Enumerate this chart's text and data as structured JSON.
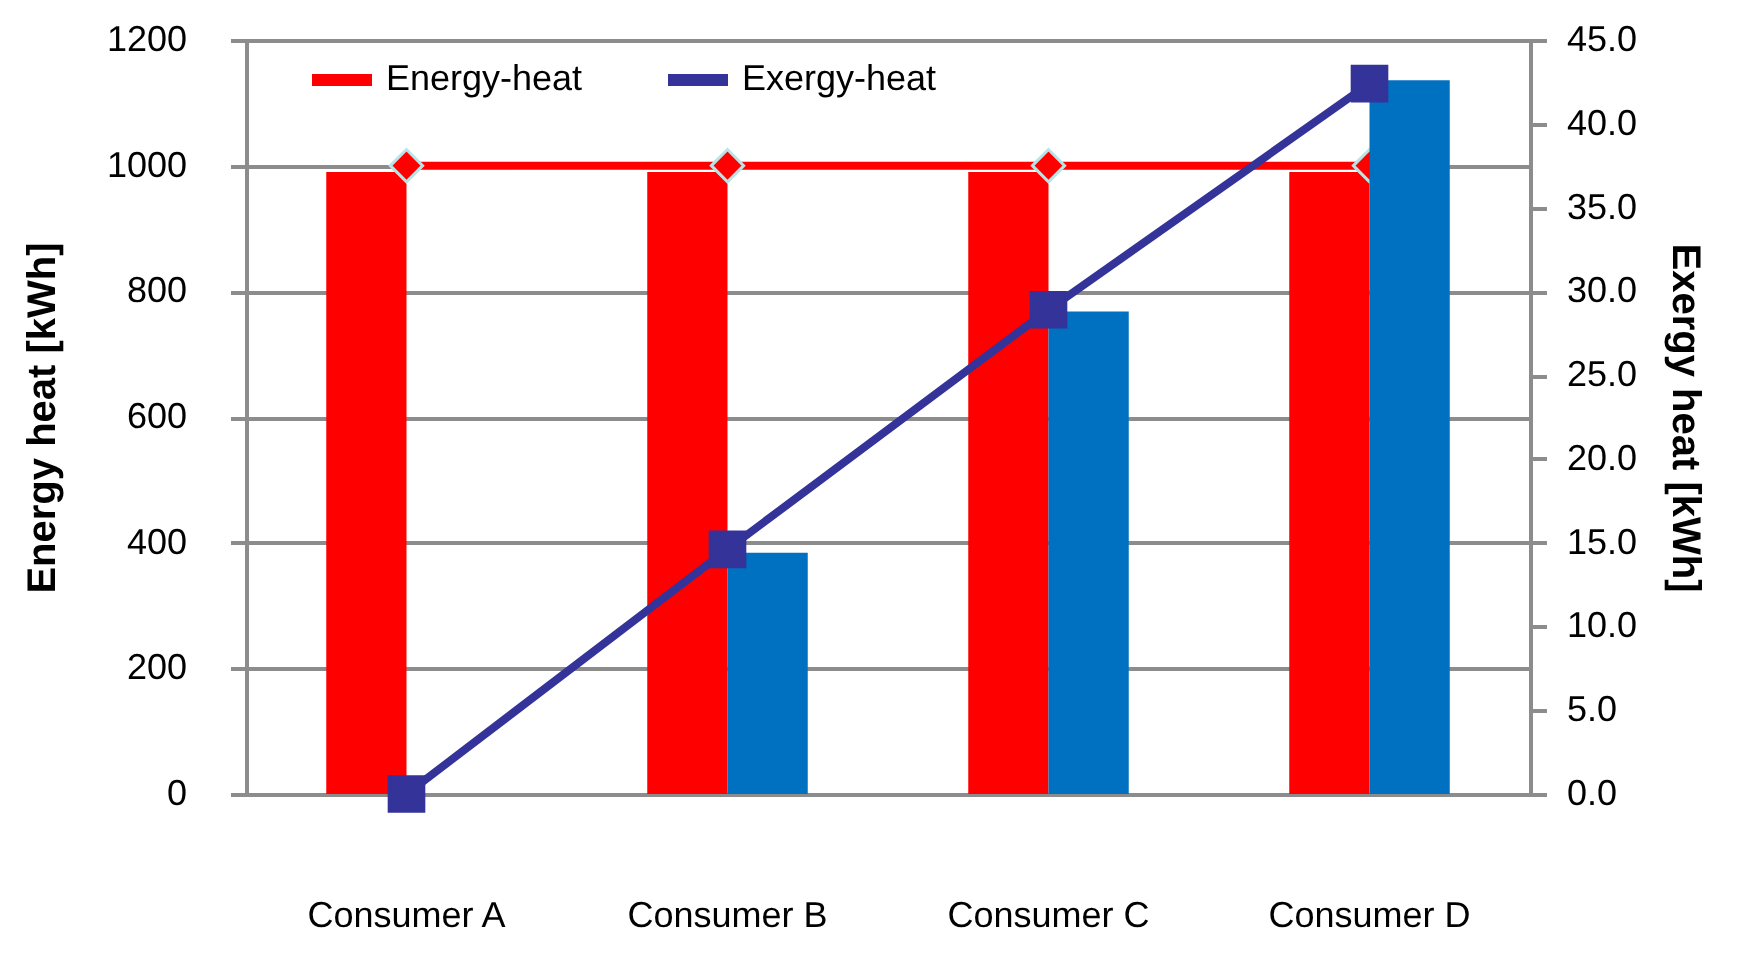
{
  "chart_data": {
    "type": "bar",
    "categories": [
      "Consumer A",
      "Consumer B",
      "Consumer C",
      "Consumer D"
    ],
    "ylabel": "Energy heat [kWh]",
    "y2label": "Exergy heat [kWh]",
    "ylim": [
      0,
      1200
    ],
    "yticks": [
      0,
      200,
      400,
      600,
      800,
      1000,
      1200
    ],
    "y2lim": [
      0,
      45
    ],
    "y2ticks": [
      {
        "value": 0,
        "label": "0.0"
      },
      {
        "value": 5,
        "label": "5.0"
      },
      {
        "value": 10,
        "label": "10.0"
      },
      {
        "value": 15,
        "label": "15.0"
      },
      {
        "value": 20,
        "label": "20.0"
      },
      {
        "value": 25,
        "label": "25.0"
      },
      {
        "value": 30,
        "label": "30.0"
      },
      {
        "value": 35,
        "label": "35.0"
      },
      {
        "value": 40,
        "label": "40.0"
      },
      {
        "value": 45,
        "label": "45.0"
      }
    ],
    "grid": "y",
    "legend": "top",
    "series": [
      {
        "color": "#ff0000",
        "values": [
          990,
          990,
          990,
          990
        ]
      },
      {
        "color": "#0070c0",
        "axis": "y2",
        "values": [
          0,
          14.4,
          28.8,
          42.6
        ]
      },
      {
        "name": "Energy-heat",
        "type": "line",
        "color": "#ff0000",
        "marker": "diamond",
        "values": [
          1000,
          1000,
          1000,
          1000
        ]
      },
      {
        "name": "Exergy-heat",
        "type": "line",
        "axis": "y2",
        "color": "#333399",
        "marker": "square",
        "values": [
          0,
          14.6,
          28.9,
          42.4
        ]
      }
    ]
  }
}
